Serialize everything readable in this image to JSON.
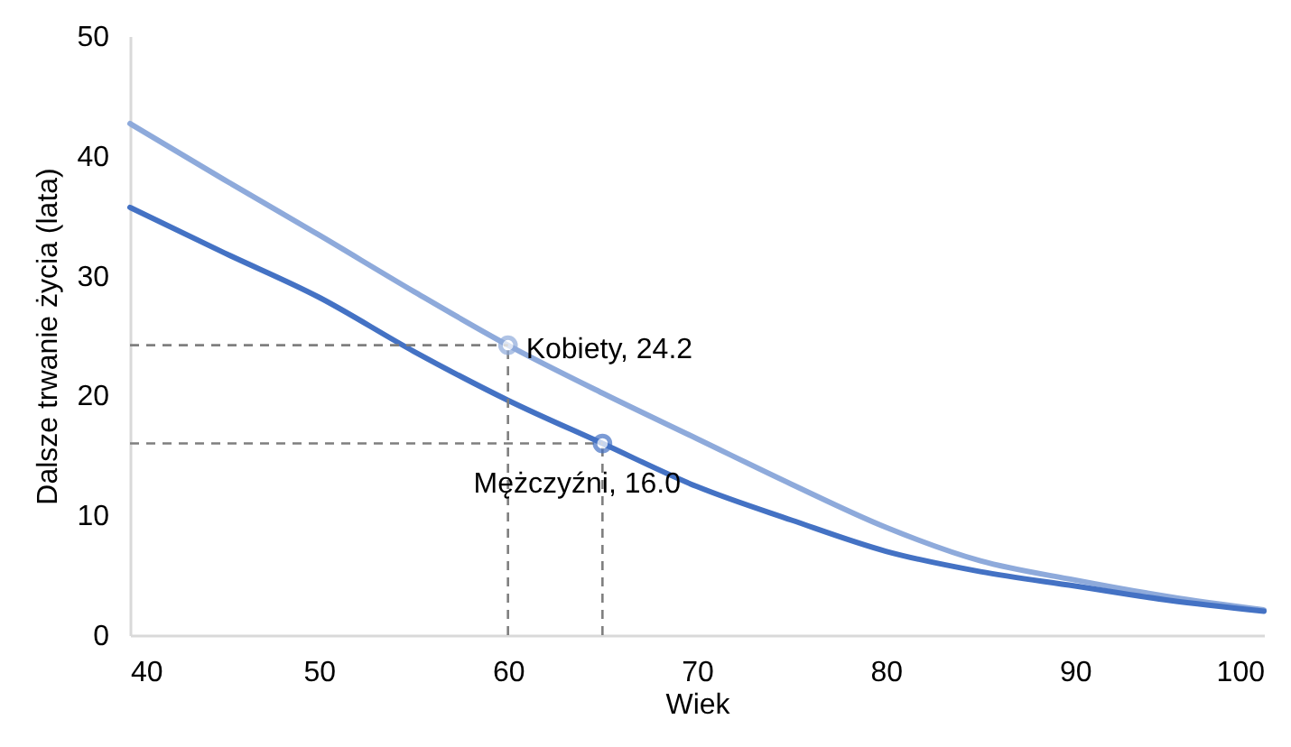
{
  "chart_data": {
    "type": "line",
    "xlabel": "Wiek",
    "ylabel": "Dalsze trwanie życia (lata)",
    "x": [
      40,
      45,
      50,
      55,
      60,
      65,
      70,
      75,
      80,
      85,
      90,
      95,
      100
    ],
    "series": [
      {
        "color": "#8eaadb",
        "values": [
          42.7,
          38.0,
          33.4,
          28.7,
          24.2,
          20.2,
          16.4,
          12.6,
          9.0,
          6.2,
          4.6,
          3.2,
          2.1
        ]
      },
      {
        "color": "#4472c4",
        "values": [
          35.7,
          31.9,
          28.2,
          23.7,
          19.6,
          16.0,
          12.4,
          9.6,
          7.0,
          5.3,
          4.1,
          2.9,
          2.0
        ]
      }
    ],
    "annotations": [
      {
        "text": "Kobiety, 24.2",
        "x": 60,
        "y": 24.2
      },
      {
        "text": "Mężczyźni, 16.0",
        "x": 65,
        "y": 16.0
      }
    ],
    "xlim": [
      40,
      100
    ],
    "xticks": [
      40,
      50,
      60,
      70,
      80,
      90,
      100
    ],
    "ylim": [
      0,
      50
    ],
    "yticks": [
      0,
      10,
      20,
      30,
      40,
      50
    ],
    "grid": false,
    "marker": "none",
    "line_style": "solid"
  }
}
